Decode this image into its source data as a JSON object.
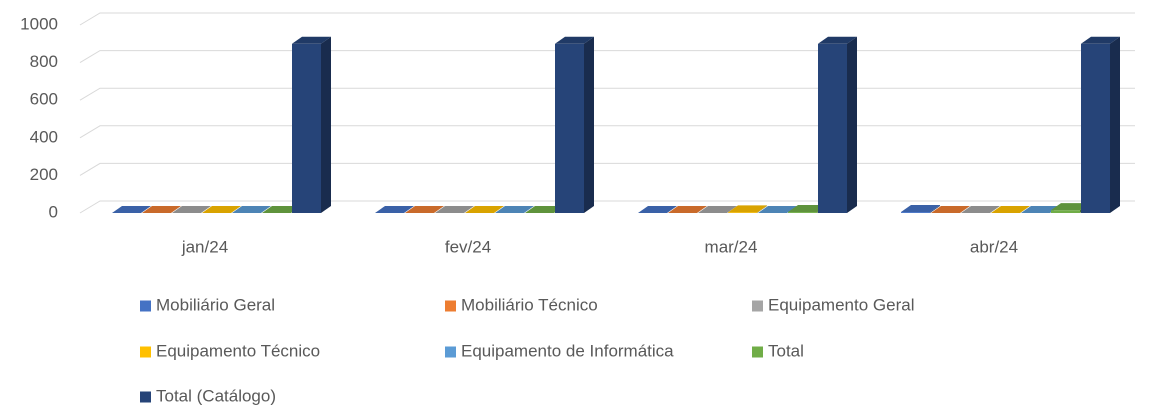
{
  "chart_data": {
    "type": "bar3d",
    "categories": [
      "jan/24",
      "fev/24",
      "mar/24",
      "abr/24"
    ],
    "series": [
      {
        "name": "Mobiliário Geral",
        "color": "#4472c4",
        "values": [
          0,
          0,
          0,
          5
        ]
      },
      {
        "name": "Mobiliário Técnico",
        "color": "#ed7d31",
        "values": [
          0,
          0,
          0,
          0
        ]
      },
      {
        "name": "Equipamento Geral",
        "color": "#a5a5a5",
        "values": [
          0,
          0,
          0,
          0
        ]
      },
      {
        "name": "Equipamento Técnico",
        "color": "#ffc000",
        "values": [
          0,
          0,
          3,
          0
        ]
      },
      {
        "name": "Equipamento de Informática",
        "color": "#5b9bd5",
        "values": [
          0,
          0,
          0,
          0
        ]
      },
      {
        "name": "Total",
        "color": "#70ad47",
        "values": [
          0,
          0,
          5,
          15
        ]
      },
      {
        "name": "Total (Catálogo)",
        "color": "#264478",
        "values": [
          900,
          900,
          900,
          900
        ]
      }
    ],
    "ylim": [
      0,
      1000
    ],
    "yticks": [
      0,
      200,
      400,
      600,
      800,
      1000
    ],
    "grid": true
  }
}
